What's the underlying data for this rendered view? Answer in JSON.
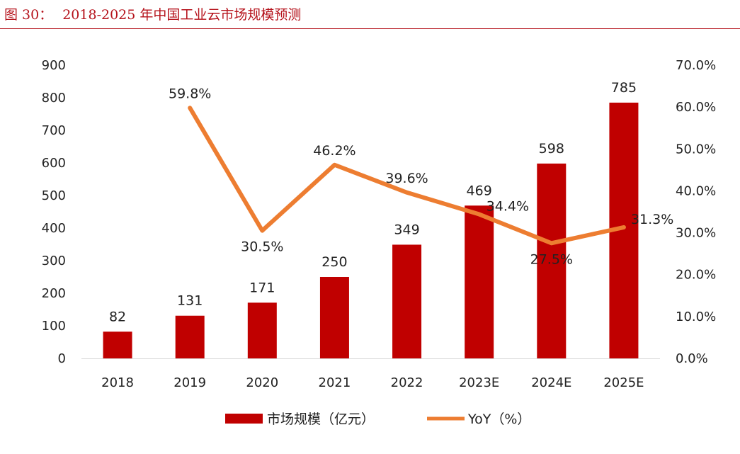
{
  "figure": {
    "label": "图 30：",
    "title": "2018-2025 年中国工业云市场规模预测"
  },
  "colors": {
    "bar": "#c00000",
    "line": "#ed7d31",
    "title": "#b5121b"
  },
  "chart_data": {
    "type": "bar",
    "title": "2018-2025 年中国工业云市场规模预测",
    "categories": [
      "2018",
      "2019",
      "2020",
      "2021",
      "2022",
      "2023E",
      "2024E",
      "2025E"
    ],
    "series": [
      {
        "name": "市场规模（亿元）",
        "type": "bar",
        "axis": "left",
        "values": [
          82,
          131,
          171,
          250,
          349,
          469,
          598,
          785
        ],
        "labels": [
          "82",
          "131",
          "171",
          "250",
          "349",
          "469",
          "598",
          "785"
        ]
      },
      {
        "name": "YoY（%）",
        "type": "line",
        "axis": "right",
        "values": [
          null,
          59.8,
          30.5,
          46.2,
          39.6,
          34.4,
          27.5,
          31.3
        ],
        "labels": [
          "",
          "59.8%",
          "30.5%",
          "46.2%",
          "39.6%",
          "34.4%",
          "27.5%",
          "31.3%"
        ]
      }
    ],
    "y_left": {
      "min": 0,
      "max": 900,
      "ticks": [
        "0",
        "100",
        "200",
        "300",
        "400",
        "500",
        "600",
        "700",
        "800",
        "900"
      ]
    },
    "y_right": {
      "min": 0,
      "max": 70,
      "ticks": [
        "0.0%",
        "10.0%",
        "20.0%",
        "30.0%",
        "40.0%",
        "50.0%",
        "60.0%",
        "70.0%"
      ]
    },
    "grid": false,
    "legend_position": "bottom"
  }
}
